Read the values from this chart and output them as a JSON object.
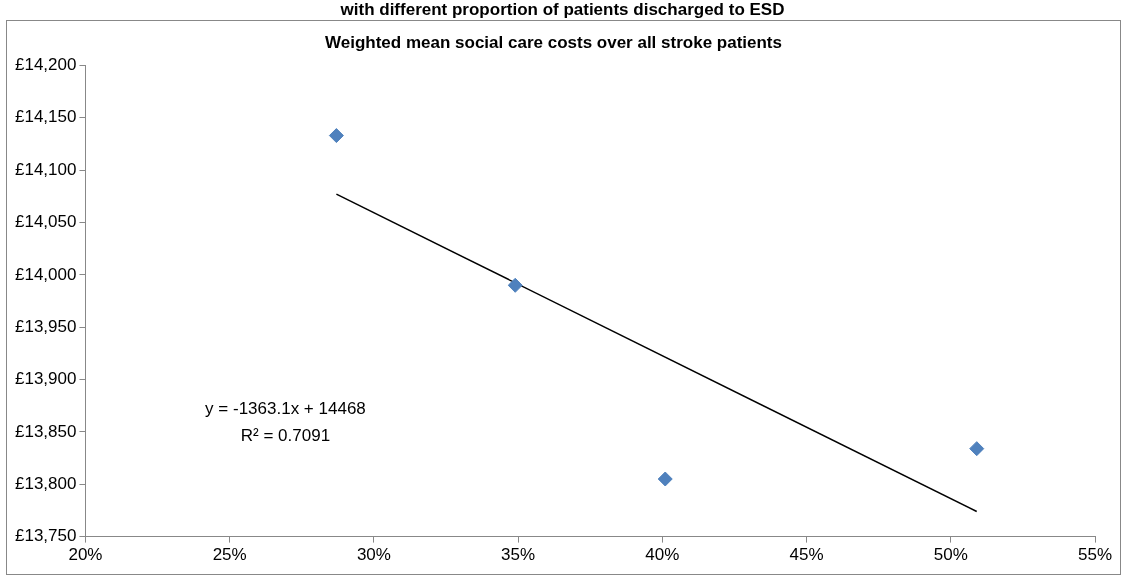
{
  "chart_data": {
    "type": "scatter",
    "title": "with different proportion of patients discharged to ESD",
    "subtitle": "Weighted mean social care costs over all stroke patients",
    "series": [
      {
        "type": "scatter",
        "color": "#4f81bd",
        "marker": "diamond",
        "x": [
          28.7,
          34.9,
          40.1,
          50.9
        ],
        "values": [
          14133,
          13990,
          13805,
          13834
        ]
      },
      {
        "type": "line",
        "color": "#000000",
        "marker": "none",
        "x": [
          28.7,
          50.9
        ],
        "values": [
          14077,
          13774
        ]
      }
    ],
    "xlim": [
      20,
      55
    ],
    "xticks": [
      {
        "value": 20,
        "label": "20%"
      },
      {
        "value": 25,
        "label": "25%"
      },
      {
        "value": 30,
        "label": "30%"
      },
      {
        "value": 35,
        "label": "35%"
      },
      {
        "value": 40,
        "label": "40%"
      },
      {
        "value": 45,
        "label": "45%"
      },
      {
        "value": 50,
        "label": "50%"
      },
      {
        "value": 55,
        "label": "55%"
      }
    ],
    "ylim": [
      13750,
      14200
    ],
    "yticks": [
      {
        "value": 13750,
        "label": "£13,750"
      },
      {
        "value": 13800,
        "label": "£13,800"
      },
      {
        "value": 13850,
        "label": "£13,850"
      },
      {
        "value": 13900,
        "label": "£13,900"
      },
      {
        "value": 13950,
        "label": "£13,950"
      },
      {
        "value": 14000,
        "label": "£14,000"
      },
      {
        "value": 14050,
        "label": "£14,050"
      },
      {
        "value": 14100,
        "label": "£14,100"
      },
      {
        "value": 14150,
        "label": "£14,150"
      },
      {
        "value": 14200,
        "label": "£14,200"
      }
    ],
    "annotations": [
      "y = -1363.1x + 14468",
      "R² = 0.7091"
    ],
    "grid": false,
    "legend": false
  }
}
